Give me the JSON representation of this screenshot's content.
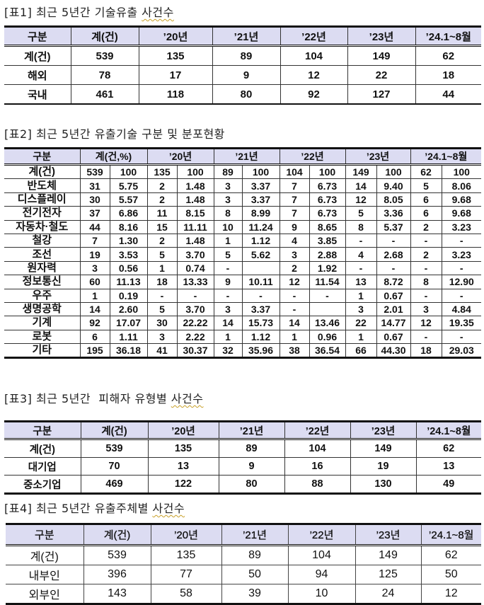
{
  "table1": {
    "caption_prefix": "[표1] 최근 5년간 기술유출 ",
    "caption_suffix": "사건수",
    "headers": [
      "구분",
      "계(건)",
      "’20년",
      "’21년",
      "’22년",
      "’23년",
      "’24.1~8월"
    ],
    "rows": [
      [
        "계(건)",
        "539",
        "135",
        "89",
        "104",
        "149",
        "62"
      ],
      [
        "해외",
        "78",
        "17",
        "9",
        "12",
        "22",
        "18"
      ],
      [
        "국내",
        "461",
        "118",
        "80",
        "92",
        "127",
        "44"
      ]
    ]
  },
  "table2": {
    "caption": "[표2] 최근 5년간 유출기술 구분 및 분포현황",
    "headers": [
      "구분",
      "계(건,%)",
      "’20년",
      "’21년",
      "’22년",
      "’23년",
      "’24.1~8월"
    ],
    "rows": [
      [
        "계(건)",
        "539",
        "100",
        "135",
        "100",
        "89",
        "100",
        "104",
        "100",
        "149",
        "100",
        "62",
        "100"
      ],
      [
        "반도체",
        "31",
        "5.75",
        "2",
        "1.48",
        "3",
        "3.37",
        "7",
        "6.73",
        "14",
        "9.40",
        "5",
        "8.06"
      ],
      [
        "디스플레이",
        "30",
        "5.57",
        "2",
        "1.48",
        "3",
        "3.37",
        "7",
        "6.73",
        "12",
        "8.05",
        "6",
        "9.68"
      ],
      [
        "전기전자",
        "37",
        "6.86",
        "11",
        "8.15",
        "8",
        "8.99",
        "7",
        "6.73",
        "5",
        "3.36",
        "6",
        "9.68"
      ],
      [
        "자동차·철도",
        "44",
        "8.16",
        "15",
        "11.11",
        "10",
        "11.24",
        "9",
        "8.65",
        "8",
        "5.37",
        "2",
        "3.23"
      ],
      [
        "철강",
        "7",
        "1.30",
        "2",
        "1.48",
        "1",
        "1.12",
        "4",
        "3.85",
        "-",
        "-",
        "-",
        "-"
      ],
      [
        "조선",
        "19",
        "3.53",
        "5",
        "3.70",
        "5",
        "5.62",
        "3",
        "2.88",
        "4",
        "2.68",
        "2",
        "3.23"
      ],
      [
        "원자력",
        "3",
        "0.56",
        "1",
        "0.74",
        "-",
        "",
        "2",
        "1.92",
        "-",
        "-",
        "-",
        "-"
      ],
      [
        "정보통신",
        "60",
        "11.13",
        "18",
        "13.33",
        "9",
        "10.11",
        "12",
        "11.54",
        "13",
        "8.72",
        "8",
        "12.90"
      ],
      [
        "우주",
        "1",
        "0.19",
        "-",
        "-",
        "-",
        "-",
        "-",
        "-",
        "1",
        "0.67",
        "-",
        "-"
      ],
      [
        "생명공학",
        "14",
        "2.60",
        "5",
        "3.70",
        "3",
        "3.37",
        "-",
        "",
        "3",
        "2.01",
        "3",
        "4.84"
      ],
      [
        "기계",
        "92",
        "17.07",
        "30",
        "22.22",
        "14",
        "15.73",
        "14",
        "13.46",
        "22",
        "14.77",
        "12",
        "19.35"
      ],
      [
        "로봇",
        "6",
        "1.11",
        "3",
        "2.22",
        "1",
        "1.12",
        "1",
        "0.96",
        "1",
        "0.67",
        "-",
        "-"
      ],
      [
        "기타",
        "195",
        "36.18",
        "41",
        "30.37",
        "32",
        "35.96",
        "38",
        "36.54",
        "66",
        "44.30",
        "18",
        "29.03"
      ]
    ]
  },
  "table3": {
    "caption_prefix": "[표3] 최근 5년간  피해자 유형별 ",
    "caption_suffix": "사건수",
    "headers": [
      "구분",
      "계(건)",
      "’20년",
      "’21년",
      "’22년",
      "’23년",
      "’24.1~8월"
    ],
    "rows": [
      [
        "계(건)",
        "539",
        "135",
        "89",
        "104",
        "149",
        "62"
      ],
      [
        "대기업",
        "70",
        "13",
        "9",
        "16",
        "19",
        "13"
      ],
      [
        "중소기업",
        "469",
        "122",
        "80",
        "88",
        "130",
        "49"
      ]
    ]
  },
  "table4": {
    "caption_prefix": "[표4] 최근 5년간 유출주체별 ",
    "caption_suffix": "사건수",
    "headers": [
      "구분",
      "계(건)",
      "’20년",
      "’21년",
      "’22년",
      "’23년",
      "’24.1~8월"
    ],
    "rows": [
      [
        "계(건)",
        "539",
        "135",
        "89",
        "104",
        "149",
        "62"
      ],
      [
        "내부인",
        "396",
        "77",
        "50",
        "94",
        "125",
        "50"
      ],
      [
        "외부인",
        "143",
        "58",
        "39",
        "10",
        "24",
        "12"
      ]
    ]
  },
  "colors": {
    "header_bg": "#dcdcf2",
    "border": "#111111",
    "spellcheck_underline": "#c8a028"
  }
}
